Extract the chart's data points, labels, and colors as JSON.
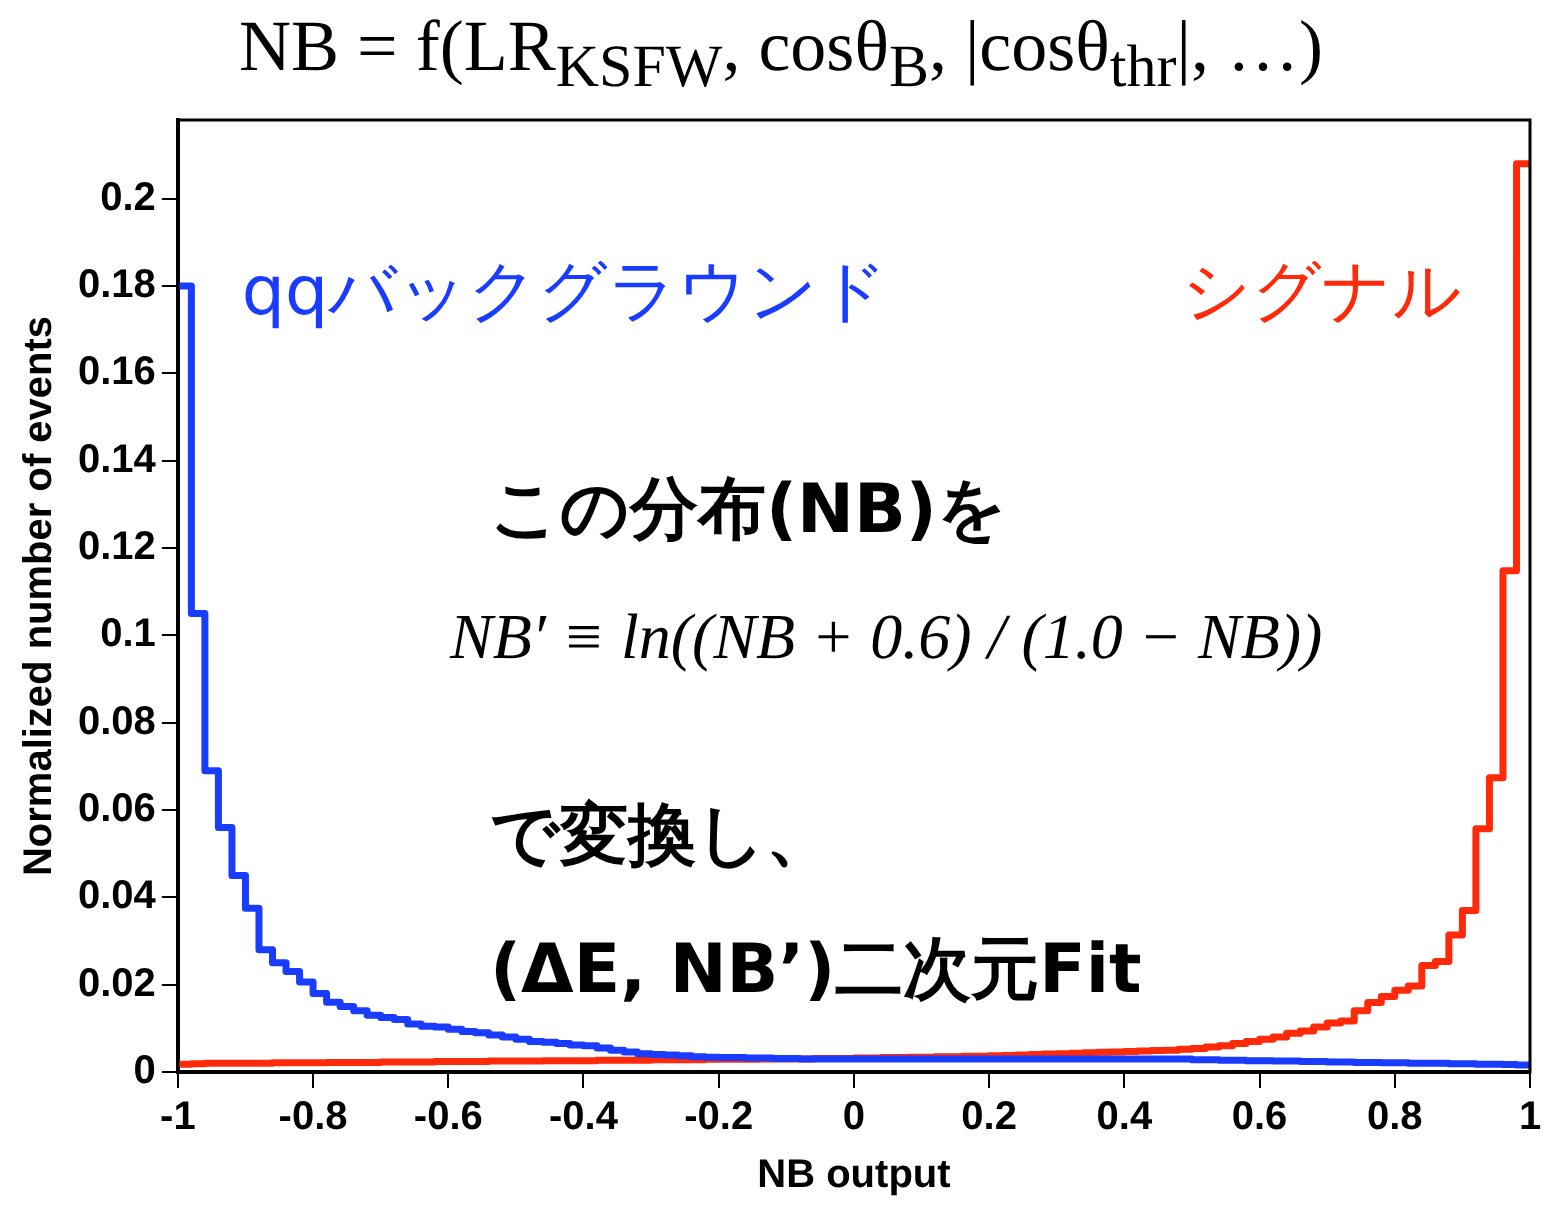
{
  "chart_data": {
    "type": "histogram",
    "title": "NB = f(LR$_{KSFW}$, cosθ$_{B}$, |cosθ$_{thr}$|, …)",
    "xlabel": "NB output",
    "ylabel": "Normalized number of events",
    "bins": [
      -1,
      -0.98,
      -0.96,
      -0.94,
      -0.92,
      -0.9,
      -0.88,
      -0.86,
      -0.84,
      -0.82,
      -0.8,
      -0.78,
      -0.76,
      -0.74,
      -0.72,
      -0.7,
      -0.68,
      -0.66,
      -0.64,
      -0.62,
      -0.6,
      -0.58,
      -0.56,
      -0.54,
      -0.52,
      -0.5,
      -0.48,
      -0.46,
      -0.44,
      -0.42,
      -0.4,
      -0.38,
      -0.36,
      -0.34,
      -0.32,
      -0.3,
      -0.28,
      -0.26,
      -0.24,
      -0.22,
      -0.2,
      -0.18,
      -0.16,
      -0.14,
      -0.12,
      -0.1,
      -0.08,
      -0.06,
      -0.04,
      -0.02,
      0,
      0.02,
      0.04,
      0.06,
      0.08,
      0.1,
      0.12,
      0.14,
      0.16,
      0.18,
      0.2,
      0.22,
      0.24,
      0.26,
      0.28,
      0.3,
      0.32,
      0.34,
      0.36,
      0.38,
      0.4,
      0.42,
      0.44,
      0.46,
      0.48,
      0.5,
      0.52,
      0.54,
      0.56,
      0.58,
      0.6,
      0.62,
      0.64,
      0.66,
      0.68,
      0.7,
      0.72,
      0.74,
      0.76,
      0.78,
      0.8,
      0.82,
      0.84,
      0.86,
      0.88,
      0.9,
      0.92,
      0.94,
      0.96,
      0.98,
      1
    ],
    "series": [
      {
        "name": "qqバックグラウンド",
        "color": "#1a3cff",
        "values": [
          0.18,
          0.105,
          0.069,
          0.056,
          0.045,
          0.0375,
          0.028,
          0.025,
          0.023,
          0.0206,
          0.018,
          0.016,
          0.015,
          0.014,
          0.013,
          0.0125,
          0.012,
          0.011,
          0.0105,
          0.0103,
          0.0098,
          0.0093,
          0.009,
          0.0085,
          0.008,
          0.0075,
          0.007,
          0.0068,
          0.0065,
          0.0062,
          0.006,
          0.0055,
          0.005,
          0.0046,
          0.0042,
          0.004,
          0.0039,
          0.0037,
          0.0035,
          0.0034,
          0.0033,
          0.0033,
          0.0032,
          0.0032,
          0.0031,
          0.0031,
          0.003,
          0.003,
          0.003,
          0.003,
          0.003,
          0.003,
          0.003,
          0.003,
          0.003,
          0.003,
          0.003,
          0.003,
          0.003,
          0.003,
          0.003,
          0.003,
          0.003,
          0.003,
          0.003,
          0.003,
          0.003,
          0.003,
          0.003,
          0.003,
          0.003,
          0.003,
          0.003,
          0.003,
          0.003,
          0.0028,
          0.0028,
          0.0027,
          0.0027,
          0.0026,
          0.0026,
          0.0025,
          0.0025,
          0.0024,
          0.0024,
          0.0023,
          0.0023,
          0.0022,
          0.0022,
          0.0021,
          0.0021,
          0.002,
          0.002,
          0.002,
          0.0019,
          0.0019,
          0.0018,
          0.0018,
          0.0017,
          0.0016
        ]
      },
      {
        "name": "シグナル",
        "color": "#ff2a0a",
        "values": [
          0.0018,
          0.0019,
          0.002,
          0.002,
          0.002,
          0.002,
          0.002,
          0.0021,
          0.0021,
          0.0021,
          0.0021,
          0.0022,
          0.0022,
          0.0022,
          0.0022,
          0.0023,
          0.0023,
          0.0023,
          0.0023,
          0.0024,
          0.0024,
          0.0024,
          0.0024,
          0.0025,
          0.0025,
          0.0025,
          0.0025,
          0.0026,
          0.0026,
          0.0026,
          0.0026,
          0.0027,
          0.0027,
          0.0027,
          0.0027,
          0.0028,
          0.0028,
          0.0028,
          0.0028,
          0.0029,
          0.0029,
          0.0029,
          0.0029,
          0.003,
          0.003,
          0.003,
          0.003,
          0.0031,
          0.0031,
          0.0031,
          0.0032,
          0.0032,
          0.0033,
          0.0033,
          0.0034,
          0.0034,
          0.0035,
          0.0035,
          0.0036,
          0.0036,
          0.0037,
          0.0038,
          0.0039,
          0.004,
          0.0041,
          0.0042,
          0.0043,
          0.0044,
          0.0045,
          0.0046,
          0.0047,
          0.0048,
          0.0049,
          0.005,
          0.0052,
          0.0054,
          0.0057,
          0.006,
          0.0065,
          0.007,
          0.0075,
          0.008,
          0.0089,
          0.0094,
          0.0103,
          0.0112,
          0.0117,
          0.014,
          0.0159,
          0.0173,
          0.0187,
          0.0197,
          0.0244,
          0.0253,
          0.0314,
          0.037,
          0.0557,
          0.0674,
          0.1148,
          0.208
        ]
      }
    ],
    "xlim": [
      -1,
      1
    ],
    "xticks": [
      -1,
      -0.8,
      -0.6,
      -0.4,
      -0.2,
      0,
      0.2,
      0.4,
      0.6,
      0.8,
      1
    ],
    "ylim": [
      0,
      0.218
    ],
    "yticks": [
      0,
      0.02,
      0.04,
      0.06,
      0.08,
      0.1,
      0.12,
      0.14,
      0.16,
      0.18,
      0.2
    ],
    "grid": false,
    "legend": false,
    "annotations": [
      "この分布(NB)を",
      "NB′ ≡ ln((NB + 0.6) / (1.0 − NB))",
      "で変換し、",
      "(ΔE, NB’)二次元Fit"
    ]
  }
}
